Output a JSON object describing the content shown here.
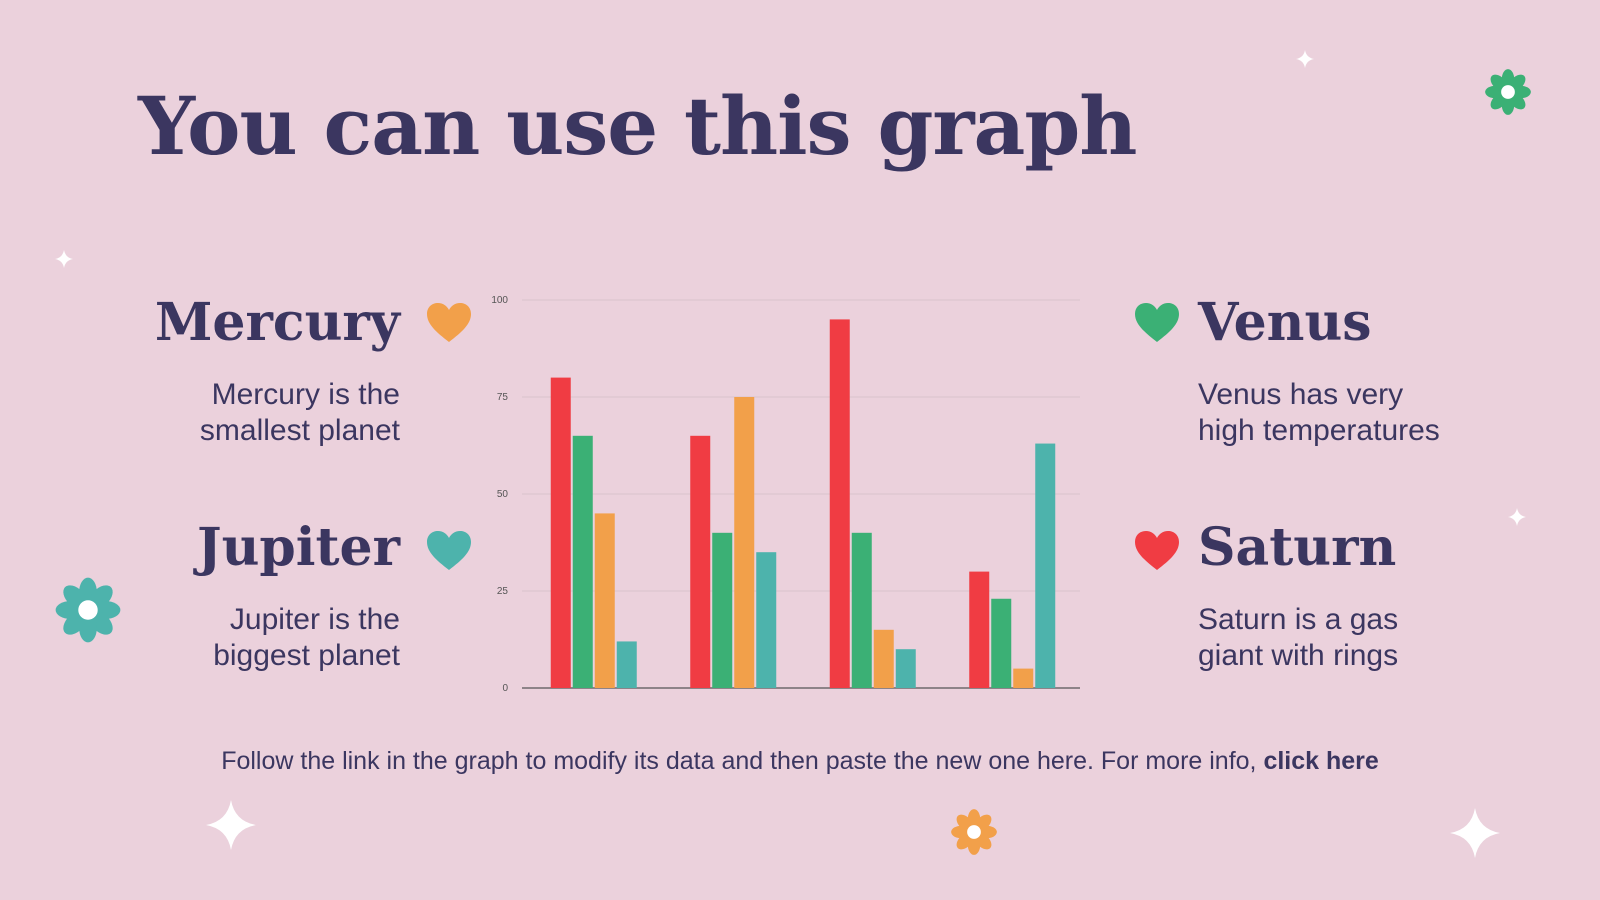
{
  "title": "You can use this graph",
  "planets": {
    "mercury": {
      "name": "Mercury",
      "desc_line1": "Mercury is the",
      "desc_line2": "smallest planet",
      "heart_color": "#f2a04a"
    },
    "jupiter": {
      "name": "Jupiter",
      "desc_line1": "Jupiter is the",
      "desc_line2": "biggest planet",
      "heart_color": "#4db3ac"
    },
    "venus": {
      "name": "Venus",
      "desc_line1": "Venus has very",
      "desc_line2": "high temperatures",
      "heart_color": "#3bb075"
    },
    "saturn": {
      "name": "Saturn",
      "desc_line1": "Saturn is a gas",
      "desc_line2": "giant with rings",
      "heart_color": "#f03c43"
    }
  },
  "footer": {
    "text": "Follow the link in the graph to modify its data and then paste the new one here. For more info, ",
    "link": "click here"
  },
  "decorations": {
    "flower_colors": {
      "green": "#3bb075",
      "teal": "#4db3ac",
      "orange": "#f2a04a"
    },
    "icons": [
      "sparkle-icon",
      "flower-icon"
    ]
  },
  "chart_data": {
    "type": "bar",
    "categories": [
      "",
      "",
      "",
      ""
    ],
    "series": [
      {
        "values": [
          80,
          65,
          95,
          30
        ],
        "color": "#f03c43"
      },
      {
        "values": [
          65,
          40,
          40,
          23
        ],
        "color": "#3bb075"
      },
      {
        "values": [
          45,
          75,
          15,
          5
        ],
        "color": "#f2a04a"
      },
      {
        "values": [
          12,
          35,
          10,
          63
        ],
        "color": "#4db3ac"
      }
    ],
    "yticks": [
      "0",
      "25",
      "50",
      "75",
      "100"
    ],
    "ylim": [
      0,
      100
    ],
    "grid": true,
    "legend": "none"
  }
}
